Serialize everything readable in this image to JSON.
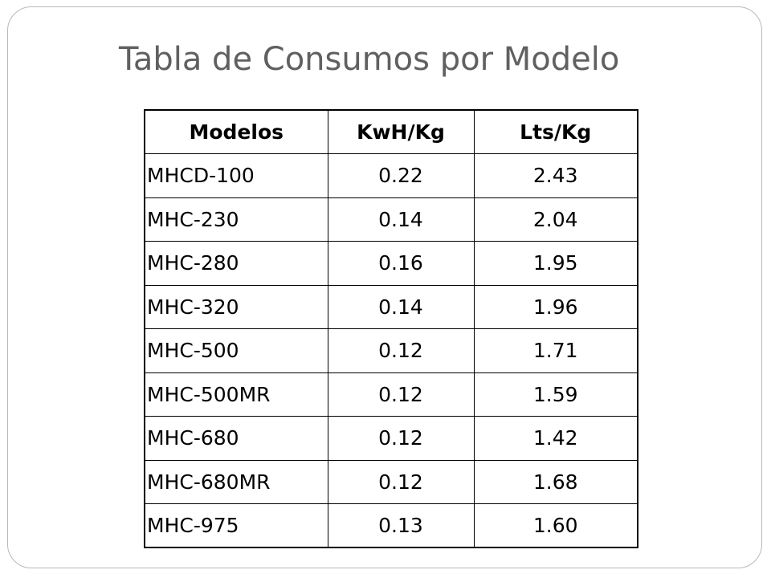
{
  "slide": {
    "title": "Tabla de Consumos por Modelo"
  },
  "table": {
    "headers": [
      "Modelos",
      "KwH/Kg",
      "Lts/Kg"
    ],
    "rows": [
      [
        "MHCD-100",
        "0.22",
        "2.43"
      ],
      [
        "MHC-230",
        "0.14",
        "2.04"
      ],
      [
        "MHC-280",
        "0.16",
        "1.95"
      ],
      [
        "MHC-320",
        "0.14",
        "1.96"
      ],
      [
        "MHC-500",
        "0.12",
        "1.71"
      ],
      [
        "MHC-500MR",
        "0.12",
        "1.59"
      ],
      [
        "MHC-680",
        "0.12",
        "1.42"
      ],
      [
        "MHC-680MR",
        "0.12",
        "1.68"
      ],
      [
        "MHC-975",
        "0.13",
        "1.60"
      ]
    ]
  }
}
